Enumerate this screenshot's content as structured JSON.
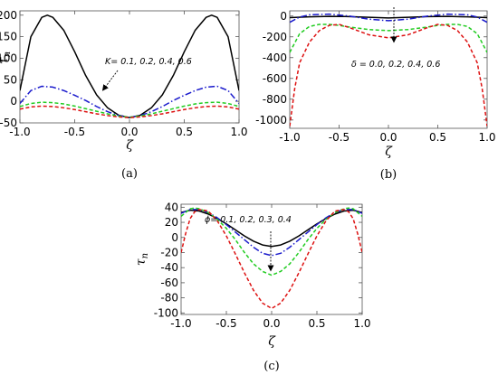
{
  "chart_data": [
    {
      "type": "line",
      "panel_label": "(a)",
      "xlabel": "ζ",
      "ylabel": "τ",
      "ylabel_sub": "n",
      "xlim": [
        -1.0,
        1.0
      ],
      "ylim": [
        -50,
        210
      ],
      "xticks": [
        "-1.0",
        "-0.5",
        "0.0",
        "0.5",
        "1.0"
      ],
      "xtick_values": [
        -1.0,
        -0.5,
        0.0,
        0.5,
        1.0
      ],
      "yticks": [
        "-50",
        "0",
        "50",
        "100",
        "150",
        "200"
      ],
      "ytick_values": [
        -50,
        0,
        50,
        100,
        150,
        200
      ],
      "annotation": "K= 0.1, 0.2, 0.4, 0.6",
      "annotation_arrow": "down-left",
      "series": [
        {
          "color": "#000000",
          "dash": "solid",
          "x": [
            -1.0,
            -0.9,
            -0.8,
            -0.75,
            -0.7,
            -0.6,
            -0.5,
            -0.4,
            -0.3,
            -0.2,
            -0.1,
            0.0,
            0.1,
            0.2,
            0.3,
            0.4,
            0.5,
            0.6,
            0.7,
            0.75,
            0.8,
            0.9,
            1.0
          ],
          "values": [
            25,
            150,
            195,
            200,
            195,
            165,
            115,
            60,
            15,
            -15,
            -32,
            -38,
            -32,
            -15,
            15,
            60,
            115,
            165,
            195,
            200,
            195,
            150,
            25
          ]
        },
        {
          "color": "#1a1acc",
          "dash": "dashdot",
          "x": [
            -1.0,
            -0.9,
            -0.8,
            -0.7,
            -0.6,
            -0.5,
            -0.4,
            -0.3,
            -0.2,
            -0.1,
            0.0,
            0.1,
            0.2,
            0.3,
            0.4,
            0.5,
            0.6,
            0.7,
            0.8,
            0.9,
            1.0
          ],
          "values": [
            -5,
            25,
            35,
            33,
            25,
            14,
            2,
            -12,
            -24,
            -33,
            -37,
            -33,
            -24,
            -12,
            2,
            14,
            25,
            33,
            35,
            25,
            -5
          ]
        },
        {
          "color": "#22cc22",
          "dash": "dashed",
          "x": [
            -1.0,
            -0.9,
            -0.8,
            -0.7,
            -0.6,
            -0.5,
            -0.4,
            -0.3,
            -0.2,
            -0.1,
            0.0,
            0.1,
            0.2,
            0.3,
            0.4,
            0.5,
            0.6,
            0.7,
            0.8,
            0.9,
            1.0
          ],
          "values": [
            -12,
            -5,
            -2,
            -3,
            -6,
            -11,
            -17,
            -23,
            -29,
            -34,
            -37,
            -34,
            -29,
            -23,
            -17,
            -11,
            -6,
            -3,
            -2,
            -5,
            -12
          ]
        },
        {
          "color": "#dd1111",
          "dash": "dashed",
          "x": [
            -1.0,
            -0.9,
            -0.8,
            -0.7,
            -0.6,
            -0.5,
            -0.4,
            -0.3,
            -0.2,
            -0.1,
            0.0,
            0.1,
            0.2,
            0.3,
            0.4,
            0.5,
            0.6,
            0.7,
            0.8,
            0.9,
            1.0
          ],
          "values": [
            -18,
            -13,
            -11,
            -12,
            -15,
            -19,
            -24,
            -29,
            -33,
            -36,
            -38,
            -36,
            -33,
            -29,
            -24,
            -19,
            -15,
            -12,
            -11,
            -13,
            -18
          ]
        }
      ]
    },
    {
      "type": "line",
      "panel_label": "(b)",
      "xlabel": "ζ",
      "ylabel": "",
      "xlim": [
        -1.0,
        1.0
      ],
      "ylim": [
        -1080,
        50
      ],
      "xticks": [
        "-1.0",
        "-0.5",
        "0.0",
        "0.5",
        "1.0"
      ],
      "xtick_values": [
        -1.0,
        -0.5,
        0.0,
        0.5,
        1.0
      ],
      "yticks": [
        "0",
        "-200",
        "-400",
        "-600",
        "-800",
        "-1000"
      ],
      "ytick_values": [
        0,
        -200,
        -400,
        -600,
        -800,
        -1000
      ],
      "annotation": "δ = 0.0, 0.2, 0.4, 0.6",
      "annotation_arrow": "down",
      "series": [
        {
          "color": "#000000",
          "dash": "solid",
          "x": [
            -1.0,
            -0.8,
            -0.6,
            -0.4,
            -0.2,
            0.0,
            0.2,
            0.4,
            0.6,
            0.8,
            1.0
          ],
          "values": [
            -15,
            -8,
            -3,
            -5,
            -12,
            -18,
            -12,
            -5,
            -3,
            -8,
            -15
          ]
        },
        {
          "color": "#1a1acc",
          "dash": "dashdot",
          "x": [
            -1.0,
            -0.9,
            -0.8,
            -0.6,
            -0.4,
            -0.2,
            0.0,
            0.2,
            0.4,
            0.6,
            0.8,
            0.9,
            1.0
          ],
          "values": [
            -60,
            -10,
            12,
            18,
            0,
            -30,
            -45,
            -30,
            0,
            18,
            12,
            -10,
            -60
          ]
        },
        {
          "color": "#22cc22",
          "dash": "dashed",
          "x": [
            -1.0,
            -0.9,
            -0.8,
            -0.7,
            -0.6,
            -0.5,
            -0.4,
            -0.2,
            0.0,
            0.2,
            0.4,
            0.5,
            0.6,
            0.7,
            0.8,
            0.9,
            1.0
          ],
          "values": [
            -350,
            -170,
            -100,
            -80,
            -80,
            -90,
            -105,
            -130,
            -140,
            -130,
            -105,
            -90,
            -80,
            -80,
            -100,
            -170,
            -350
          ]
        },
        {
          "color": "#dd1111",
          "dash": "dashed",
          "x": [
            -1.0,
            -0.95,
            -0.9,
            -0.8,
            -0.7,
            -0.6,
            -0.5,
            -0.4,
            -0.2,
            0.0,
            0.2,
            0.4,
            0.5,
            0.6,
            0.7,
            0.8,
            0.9,
            0.95,
            1.0
          ],
          "values": [
            -1060,
            -700,
            -450,
            -250,
            -140,
            -90,
            -80,
            -110,
            -180,
            -210,
            -180,
            -110,
            -80,
            -90,
            -140,
            -250,
            -450,
            -700,
            -1060
          ]
        }
      ]
    },
    {
      "type": "line",
      "panel_label": "(c)",
      "xlabel": "ζ",
      "ylabel": "τ",
      "ylabel_sub": "n",
      "xlim": [
        -1.0,
        1.0
      ],
      "ylim": [
        -102,
        44
      ],
      "xticks": [
        "-1.0",
        "-0.5",
        "0.0",
        "0.5",
        "1.0"
      ],
      "xtick_values": [
        -1.0,
        -0.5,
        0.0,
        0.5,
        1.0
      ],
      "yticks": [
        "40",
        "20",
        "0",
        "-20",
        "-40",
        "-60",
        "-80",
        "-100"
      ],
      "ytick_values": [
        40,
        20,
        0,
        -20,
        -40,
        -60,
        -80,
        -100
      ],
      "annotation": "ϕ= 0.1, 0.2, 0.3, 0.4",
      "annotation_arrow": "down",
      "series": [
        {
          "color": "#000000",
          "dash": "solid",
          "x": [
            -1.0,
            -0.9,
            -0.8,
            -0.7,
            -0.6,
            -0.5,
            -0.4,
            -0.3,
            -0.2,
            -0.1,
            0.0,
            0.1,
            0.2,
            0.3,
            0.4,
            0.5,
            0.6,
            0.7,
            0.8,
            0.9,
            1.0
          ],
          "values": [
            33,
            36,
            35,
            31,
            25,
            18,
            10,
            2,
            -5,
            -10,
            -12,
            -10,
            -5,
            2,
            10,
            18,
            25,
            31,
            35,
            36,
            33
          ]
        },
        {
          "color": "#1a1acc",
          "dash": "dashdot",
          "x": [
            -1.0,
            -0.9,
            -0.8,
            -0.7,
            -0.6,
            -0.5,
            -0.4,
            -0.3,
            -0.2,
            -0.1,
            0.0,
            0.1,
            0.2,
            0.3,
            0.4,
            0.5,
            0.6,
            0.7,
            0.8,
            0.9,
            1.0
          ],
          "values": [
            32,
            37,
            37,
            33,
            26,
            17,
            7,
            -3,
            -13,
            -21,
            -24,
            -21,
            -13,
            -3,
            7,
            17,
            26,
            33,
            37,
            37,
            32
          ]
        },
        {
          "color": "#22cc22",
          "dash": "dashed",
          "x": [
            -1.0,
            -0.9,
            -0.85,
            -0.8,
            -0.7,
            -0.6,
            -0.5,
            -0.4,
            -0.3,
            -0.2,
            -0.1,
            0.0,
            0.1,
            0.2,
            0.3,
            0.4,
            0.5,
            0.6,
            0.7,
            0.8,
            0.85,
            0.9,
            1.0
          ],
          "values": [
            28,
            38,
            39,
            38,
            33,
            24,
            12,
            -3,
            -20,
            -35,
            -45,
            -50,
            -45,
            -35,
            -20,
            -3,
            12,
            24,
            33,
            38,
            39,
            38,
            28
          ]
        },
        {
          "color": "#dd1111",
          "dash": "dashed",
          "x": [
            -1.0,
            -0.95,
            -0.9,
            -0.85,
            -0.8,
            -0.7,
            -0.6,
            -0.5,
            -0.4,
            -0.3,
            -0.2,
            -0.1,
            0.0,
            0.1,
            0.2,
            0.3,
            0.4,
            0.5,
            0.6,
            0.7,
            0.8,
            0.85,
            0.9,
            0.95,
            1.0
          ],
          "values": [
            -20,
            5,
            25,
            34,
            37,
            35,
            22,
            2,
            -22,
            -47,
            -70,
            -87,
            -94,
            -87,
            -70,
            -47,
            -22,
            2,
            22,
            35,
            37,
            34,
            25,
            5,
            -20
          ]
        }
      ]
    }
  ]
}
